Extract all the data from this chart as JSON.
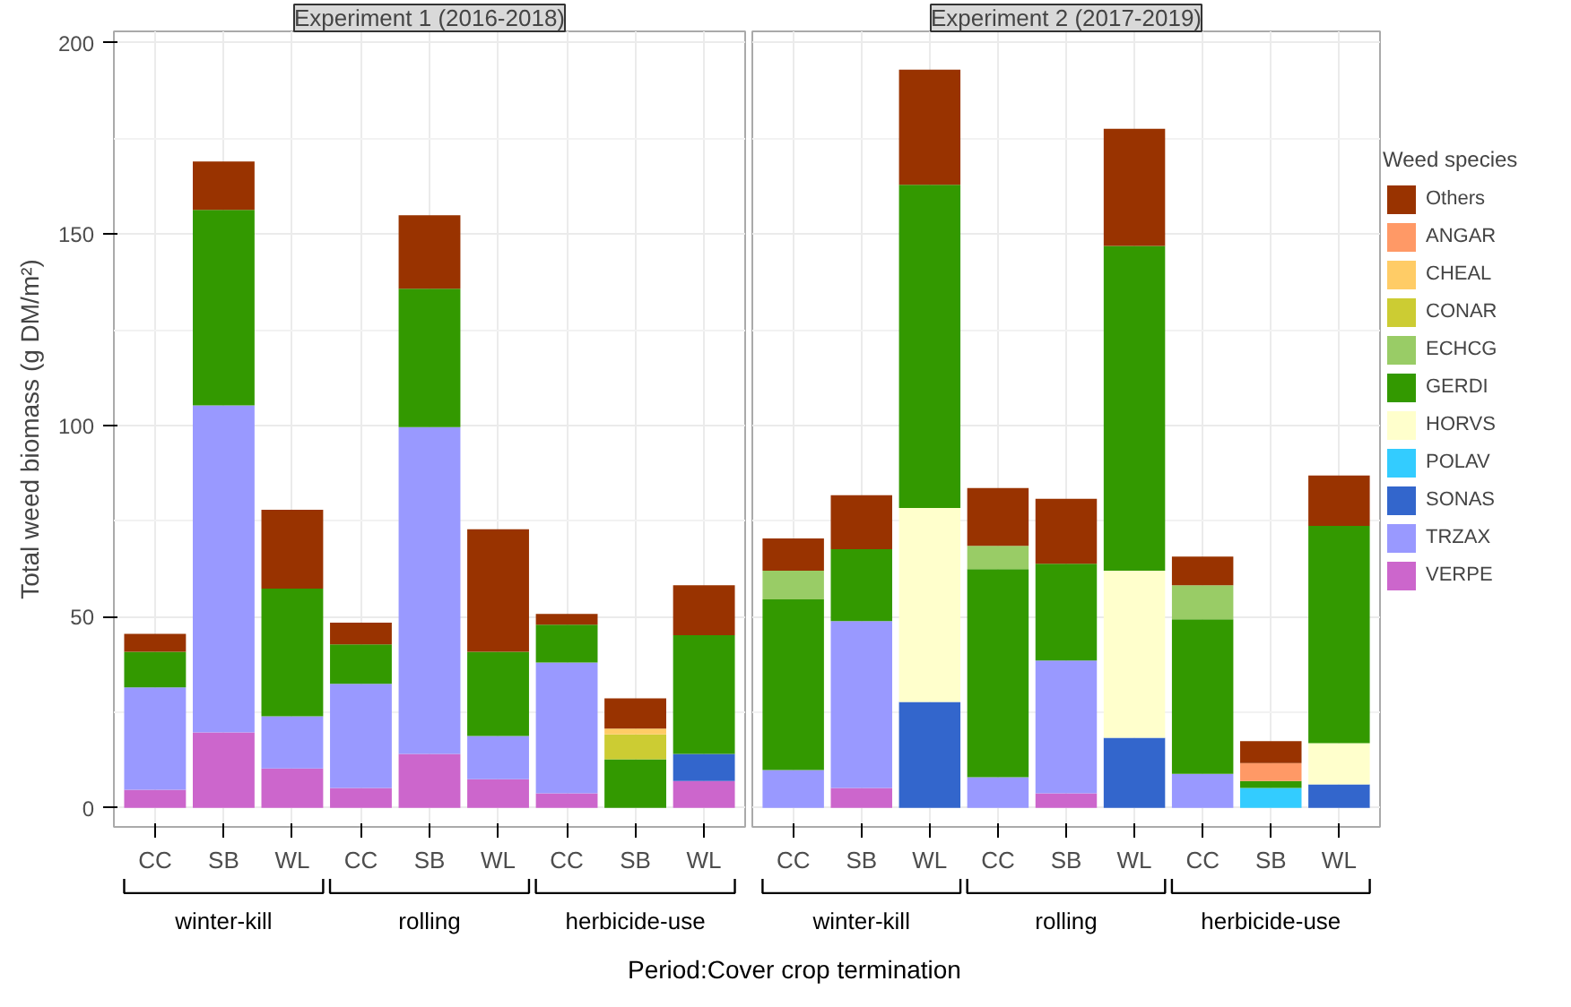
{
  "chart_data": [
    {
      "type": "bar",
      "stacked": true,
      "title": "Experiment 1 (2016-2018)",
      "ylabel": "Total weed biomass (g DM/m²)",
      "xlabel": "Period:Cover crop termination",
      "categories": [
        "CC",
        "SB",
        "WL",
        "CC",
        "SB",
        "WL",
        "CC",
        "SB",
        "WL"
      ],
      "annotations": [
        "winter-kill",
        "rolling",
        "herbicide-use"
      ],
      "ylim": [
        -5,
        203
      ],
      "yticks": [
        0,
        50,
        100,
        150,
        200
      ],
      "grid": true,
      "legend": false,
      "series": [
        {
          "color": "#cc66cc",
          "values": [
            4.7,
            19.7,
            10.3,
            5.2,
            14.1,
            7.5,
            3.8,
            null,
            7.0
          ]
        },
        {
          "color": "#9999ff",
          "values": [
            26.8,
            85.5,
            13.6,
            27.2,
            85.4,
            11.3,
            34.2,
            null,
            null
          ]
        },
        {
          "color": "#3366cc",
          "values": [
            null,
            null,
            null,
            null,
            null,
            null,
            null,
            null,
            7.1
          ]
        },
        {
          "color": "#339900",
          "values": [
            9.3,
            51.1,
            33.4,
            10.3,
            36.2,
            22.0,
            9.9,
            12.7,
            31.0
          ]
        },
        {
          "color": "#cccc33",
          "values": [
            null,
            null,
            null,
            null,
            null,
            null,
            null,
            6.5,
            null
          ]
        },
        {
          "color": "#ffcc66",
          "values": [
            null,
            null,
            null,
            null,
            null,
            null,
            null,
            1.5,
            null
          ]
        },
        {
          "color": "#993300",
          "values": [
            4.7,
            12.7,
            20.6,
            5.7,
            19.2,
            32.0,
            2.8,
            7.9,
            13.1
          ]
        }
      ]
    },
    {
      "type": "bar",
      "stacked": true,
      "title": "Experiment 2 (2017-2019)",
      "legend_title": "Weed species",
      "categories": [
        "CC",
        "SB",
        "WL",
        "CC",
        "SB",
        "WL",
        "CC",
        "SB",
        "WL"
      ],
      "annotations": [
        "winter-kill",
        "rolling",
        "herbicide-use"
      ],
      "ylim": [
        -5,
        203
      ],
      "yticks": [
        0,
        50,
        100,
        150,
        200
      ],
      "grid": true,
      "legend": "right",
      "tick_labels": "x",
      "series": [
        {
          "name": "VERPE",
          "color": "#cc66cc",
          "values": [
            null,
            5.2,
            null,
            null,
            3.8,
            null,
            null,
            null,
            null
          ]
        },
        {
          "name": "TRZAX",
          "color": "#9999ff",
          "values": [
            9.9,
            43.6,
            null,
            8.0,
            34.7,
            null,
            8.9,
            null,
            null
          ]
        },
        {
          "name": "SONAS",
          "color": "#3366cc",
          "values": [
            null,
            null,
            27.7,
            null,
            null,
            18.3,
            null,
            null,
            6.1
          ]
        },
        {
          "name": "POLAV",
          "color": "#33ccff",
          "values": [
            null,
            null,
            null,
            null,
            null,
            null,
            null,
            5.2,
            null
          ]
        },
        {
          "name": "HORVS",
          "color": "#ffffcc",
          "values": [
            null,
            null,
            50.7,
            null,
            null,
            43.7,
            null,
            null,
            10.8
          ]
        },
        {
          "name": "GERDI",
          "color": "#339900",
          "values": [
            44.6,
            18.8,
            84.5,
            54.4,
            25.3,
            84.9,
            40.4,
            1.8,
            56.8
          ]
        },
        {
          "name": "ECHCG",
          "color": "#99cc66",
          "values": [
            7.5,
            null,
            null,
            6.1,
            null,
            null,
            8.9,
            null,
            null
          ]
        },
        {
          "name": "CONAR",
          "color": "#cccc33",
          "values": [
            null,
            null,
            null,
            null,
            null,
            null,
            null,
            null,
            null
          ]
        },
        {
          "name": "CHEAL",
          "color": "#ffcc66",
          "values": [
            null,
            null,
            null,
            null,
            null,
            null,
            null,
            null,
            null
          ]
        },
        {
          "name": "ANGAR",
          "color": "#ff9966",
          "values": [
            null,
            null,
            null,
            null,
            null,
            null,
            null,
            4.7,
            null
          ]
        },
        {
          "name": "Others",
          "color": "#993300",
          "values": [
            8.4,
            14.1,
            30.1,
            15.1,
            17.0,
            30.6,
            7.5,
            5.7,
            13.2
          ]
        }
      ]
    }
  ]
}
